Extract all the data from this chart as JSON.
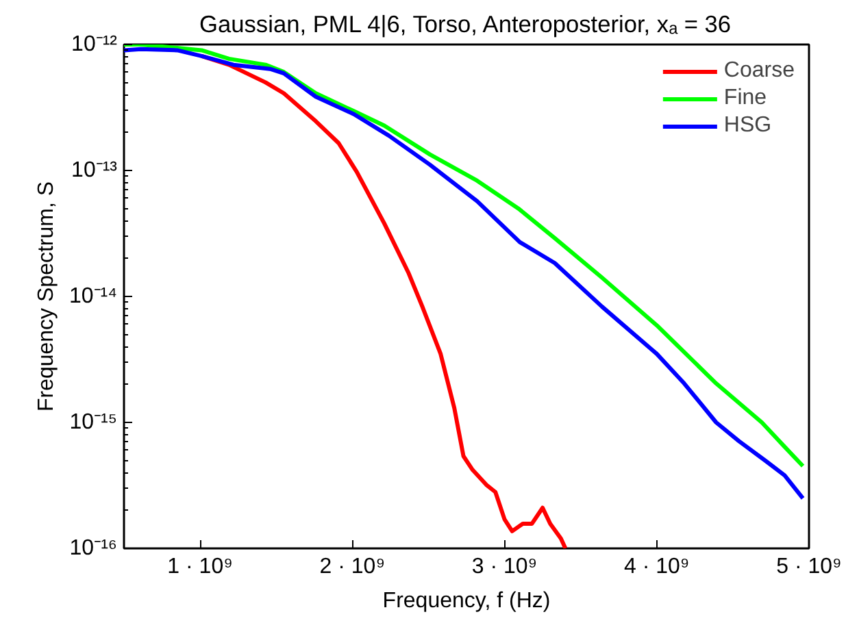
{
  "chart_data": {
    "type": "line",
    "title": "Gaussian, PML 4|6, Torso, Anteroposterior, xₐ = 36",
    "xlabel": "Frequency, f (Hz)",
    "ylabel": "Frequency Spectrum, S",
    "log": "y",
    "grid": false,
    "legend": "top right",
    "marker": "none",
    "line_style": "solid",
    "xlim": [
      500000000.0,
      5000000000.0
    ],
    "ylim": [
      1e-16,
      1e-12
    ],
    "xticks": [
      {
        "value": 1000000000.0,
        "label": "1 · 10⁹"
      },
      {
        "value": 2000000000.0,
        "label": "2 · 10⁹"
      },
      {
        "value": 3000000000.0,
        "label": "3 · 10⁹"
      },
      {
        "value": 4000000000.0,
        "label": "4 · 10⁹"
      },
      {
        "value": 5000000000.0,
        "label": "5 · 10⁹"
      }
    ],
    "yticks": [
      {
        "value": 1e-16,
        "label": "10⁻¹⁶"
      },
      {
        "value": 1e-15,
        "label": "10⁻¹⁵"
      },
      {
        "value": 1e-14,
        "label": "10⁻¹⁴"
      },
      {
        "value": 1e-13,
        "label": "10⁻¹³"
      },
      {
        "value": 1e-12,
        "label": "10⁻¹²"
      }
    ],
    "series": [
      {
        "name": "Coarse",
        "color": "#ff0000",
        "x": [
          1010000000.0,
          1190000000.0,
          1430000000.0,
          1550000000.0,
          1760000000.0,
          1910000000.0,
          2030000000.0,
          2210000000.0,
          2370000000.0,
          2460000000.0,
          2580000000.0,
          2670000000.0,
          2730000000.0,
          2790000000.0,
          2880000000.0,
          2940000000.0,
          3000000000.0,
          3050000000.0,
          3120000000.0,
          3180000000.0,
          3250000000.0,
          3300000000.0,
          3370000000.0,
          3400000000.0
        ],
        "values": [
          8.1e-13,
          6.9e-13,
          5e-13,
          4.1e-13,
          2.46e-13,
          1.65e-13,
          9.7e-14,
          3.8e-14,
          1.53e-14,
          8.3e-15,
          3.5e-15,
          1.3e-15,
          5.4e-16,
          4.2e-16,
          3.2e-16,
          2.8e-16,
          1.7e-16,
          1.37e-16,
          1.57e-16,
          1.57e-16,
          2.1e-16,
          1.57e-16,
          1.2e-16,
          1e-16
        ]
      },
      {
        "name": "Fine",
        "color": "#00ff00",
        "x": [
          500000000.0,
          610000000.0,
          1010000000.0,
          1190000000.0,
          1430000000.0,
          1550000000.0,
          1760000000.0,
          2010000000.0,
          2210000000.0,
          2510000000.0,
          2820000000.0,
          3090000000.0,
          3330000000.0,
          3640000000.0,
          4000000000.0,
          4390000000.0,
          4690000000.0,
          4840000000.0,
          4960000000.0
        ],
        "values": [
          1e-12,
          1e-12,
          9e-13,
          7.7e-13,
          6.9e-13,
          6.05e-13,
          4.1e-13,
          2.96e-13,
          2.27e-13,
          1.34e-13,
          8.3e-14,
          5e-14,
          2.9e-14,
          1.41e-14,
          5.9e-15,
          2.04e-15,
          1e-15,
          6.4e-16,
          4.5e-16
        ]
      },
      {
        "name": "HSG",
        "color": "#0000ff",
        "x": [
          500000000.0,
          610000000.0,
          850000000.0,
          1010000000.0,
          1220000000.0,
          1460000000.0,
          1550000000.0,
          1760000000.0,
          2010000000.0,
          2240000000.0,
          2510000000.0,
          2820000000.0,
          3100000000.0,
          3330000000.0,
          3640000000.0,
          4000000000.0,
          4180000000.0,
          4390000000.0,
          4540000000.0,
          4720000000.0,
          4840000000.0,
          4960000000.0
        ],
        "values": [
          9e-13,
          9.2e-13,
          9e-13,
          8.1e-13,
          6.9e-13,
          6.4e-13,
          5.9e-13,
          3.85e-13,
          2.8e-13,
          1.89e-13,
          1.11e-13,
          5.7e-14,
          2.7e-14,
          1.84e-14,
          8.3e-15,
          3.5e-15,
          2.04e-15,
          1e-15,
          7.1e-16,
          4.9e-16,
          3.8e-16,
          2.5e-16
        ]
      }
    ]
  }
}
